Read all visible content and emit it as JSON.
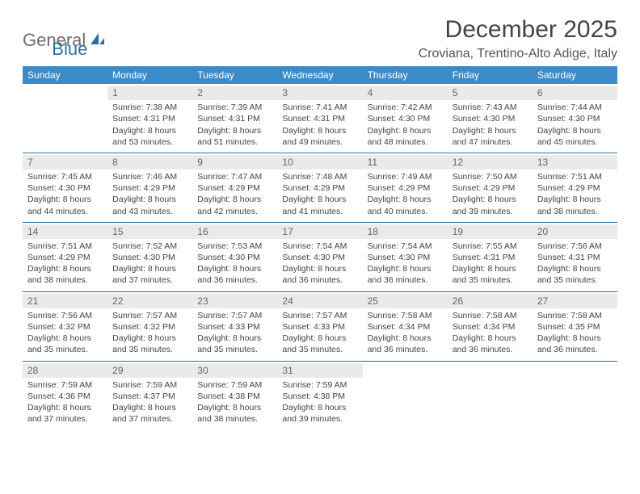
{
  "logo": {
    "general": "General",
    "blue": "Blue"
  },
  "title": "December 2025",
  "location": "Croviana, Trentino-Alto Adige, Italy",
  "header_bg": "#3b8bc9",
  "days_of_week": [
    "Sunday",
    "Monday",
    "Tuesday",
    "Wednesday",
    "Thursday",
    "Friday",
    "Saturday"
  ],
  "weeks": [
    [
      null,
      {
        "n": "1",
        "sunrise": "Sunrise: 7:38 AM",
        "sunset": "Sunset: 4:31 PM",
        "day1": "Daylight: 8 hours",
        "day2": "and 53 minutes."
      },
      {
        "n": "2",
        "sunrise": "Sunrise: 7:39 AM",
        "sunset": "Sunset: 4:31 PM",
        "day1": "Daylight: 8 hours",
        "day2": "and 51 minutes."
      },
      {
        "n": "3",
        "sunrise": "Sunrise: 7:41 AM",
        "sunset": "Sunset: 4:31 PM",
        "day1": "Daylight: 8 hours",
        "day2": "and 49 minutes."
      },
      {
        "n": "4",
        "sunrise": "Sunrise: 7:42 AM",
        "sunset": "Sunset: 4:30 PM",
        "day1": "Daylight: 8 hours",
        "day2": "and 48 minutes."
      },
      {
        "n": "5",
        "sunrise": "Sunrise: 7:43 AM",
        "sunset": "Sunset: 4:30 PM",
        "day1": "Daylight: 8 hours",
        "day2": "and 47 minutes."
      },
      {
        "n": "6",
        "sunrise": "Sunrise: 7:44 AM",
        "sunset": "Sunset: 4:30 PM",
        "day1": "Daylight: 8 hours",
        "day2": "and 45 minutes."
      }
    ],
    [
      {
        "n": "7",
        "sunrise": "Sunrise: 7:45 AM",
        "sunset": "Sunset: 4:30 PM",
        "day1": "Daylight: 8 hours",
        "day2": "and 44 minutes."
      },
      {
        "n": "8",
        "sunrise": "Sunrise: 7:46 AM",
        "sunset": "Sunset: 4:29 PM",
        "day1": "Daylight: 8 hours",
        "day2": "and 43 minutes."
      },
      {
        "n": "9",
        "sunrise": "Sunrise: 7:47 AM",
        "sunset": "Sunset: 4:29 PM",
        "day1": "Daylight: 8 hours",
        "day2": "and 42 minutes."
      },
      {
        "n": "10",
        "sunrise": "Sunrise: 7:48 AM",
        "sunset": "Sunset: 4:29 PM",
        "day1": "Daylight: 8 hours",
        "day2": "and 41 minutes."
      },
      {
        "n": "11",
        "sunrise": "Sunrise: 7:49 AM",
        "sunset": "Sunset: 4:29 PM",
        "day1": "Daylight: 8 hours",
        "day2": "and 40 minutes."
      },
      {
        "n": "12",
        "sunrise": "Sunrise: 7:50 AM",
        "sunset": "Sunset: 4:29 PM",
        "day1": "Daylight: 8 hours",
        "day2": "and 39 minutes."
      },
      {
        "n": "13",
        "sunrise": "Sunrise: 7:51 AM",
        "sunset": "Sunset: 4:29 PM",
        "day1": "Daylight: 8 hours",
        "day2": "and 38 minutes."
      }
    ],
    [
      {
        "n": "14",
        "sunrise": "Sunrise: 7:51 AM",
        "sunset": "Sunset: 4:29 PM",
        "day1": "Daylight: 8 hours",
        "day2": "and 38 minutes."
      },
      {
        "n": "15",
        "sunrise": "Sunrise: 7:52 AM",
        "sunset": "Sunset: 4:30 PM",
        "day1": "Daylight: 8 hours",
        "day2": "and 37 minutes."
      },
      {
        "n": "16",
        "sunrise": "Sunrise: 7:53 AM",
        "sunset": "Sunset: 4:30 PM",
        "day1": "Daylight: 8 hours",
        "day2": "and 36 minutes."
      },
      {
        "n": "17",
        "sunrise": "Sunrise: 7:54 AM",
        "sunset": "Sunset: 4:30 PM",
        "day1": "Daylight: 8 hours",
        "day2": "and 36 minutes."
      },
      {
        "n": "18",
        "sunrise": "Sunrise: 7:54 AM",
        "sunset": "Sunset: 4:30 PM",
        "day1": "Daylight: 8 hours",
        "day2": "and 36 minutes."
      },
      {
        "n": "19",
        "sunrise": "Sunrise: 7:55 AM",
        "sunset": "Sunset: 4:31 PM",
        "day1": "Daylight: 8 hours",
        "day2": "and 35 minutes."
      },
      {
        "n": "20",
        "sunrise": "Sunrise: 7:56 AM",
        "sunset": "Sunset: 4:31 PM",
        "day1": "Daylight: 8 hours",
        "day2": "and 35 minutes."
      }
    ],
    [
      {
        "n": "21",
        "sunrise": "Sunrise: 7:56 AM",
        "sunset": "Sunset: 4:32 PM",
        "day1": "Daylight: 8 hours",
        "day2": "and 35 minutes."
      },
      {
        "n": "22",
        "sunrise": "Sunrise: 7:57 AM",
        "sunset": "Sunset: 4:32 PM",
        "day1": "Daylight: 8 hours",
        "day2": "and 35 minutes."
      },
      {
        "n": "23",
        "sunrise": "Sunrise: 7:57 AM",
        "sunset": "Sunset: 4:33 PM",
        "day1": "Daylight: 8 hours",
        "day2": "and 35 minutes."
      },
      {
        "n": "24",
        "sunrise": "Sunrise: 7:57 AM",
        "sunset": "Sunset: 4:33 PM",
        "day1": "Daylight: 8 hours",
        "day2": "and 35 minutes."
      },
      {
        "n": "25",
        "sunrise": "Sunrise: 7:58 AM",
        "sunset": "Sunset: 4:34 PM",
        "day1": "Daylight: 8 hours",
        "day2": "and 36 minutes."
      },
      {
        "n": "26",
        "sunrise": "Sunrise: 7:58 AM",
        "sunset": "Sunset: 4:34 PM",
        "day1": "Daylight: 8 hours",
        "day2": "and 36 minutes."
      },
      {
        "n": "27",
        "sunrise": "Sunrise: 7:58 AM",
        "sunset": "Sunset: 4:35 PM",
        "day1": "Daylight: 8 hours",
        "day2": "and 36 minutes."
      }
    ],
    [
      {
        "n": "28",
        "sunrise": "Sunrise: 7:59 AM",
        "sunset": "Sunset: 4:36 PM",
        "day1": "Daylight: 8 hours",
        "day2": "and 37 minutes."
      },
      {
        "n": "29",
        "sunrise": "Sunrise: 7:59 AM",
        "sunset": "Sunset: 4:37 PM",
        "day1": "Daylight: 8 hours",
        "day2": "and 37 minutes."
      },
      {
        "n": "30",
        "sunrise": "Sunrise: 7:59 AM",
        "sunset": "Sunset: 4:38 PM",
        "day1": "Daylight: 8 hours",
        "day2": "and 38 minutes."
      },
      {
        "n": "31",
        "sunrise": "Sunrise: 7:59 AM",
        "sunset": "Sunset: 4:38 PM",
        "day1": "Daylight: 8 hours",
        "day2": "and 39 minutes."
      },
      null,
      null,
      null
    ]
  ]
}
